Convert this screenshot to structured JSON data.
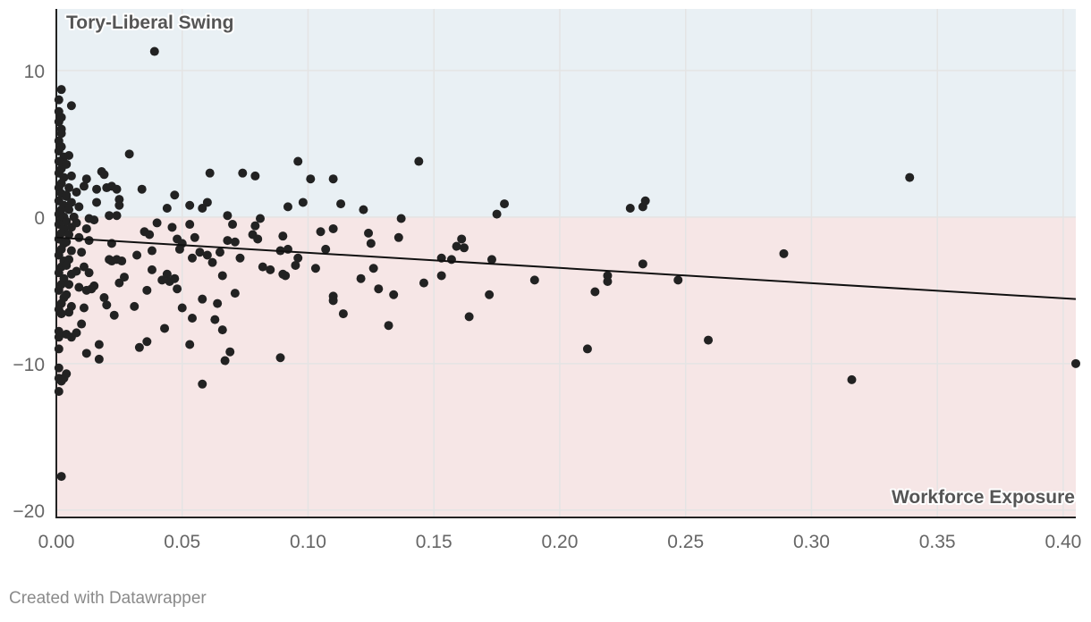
{
  "chart_data": {
    "type": "scatter",
    "ylabel": "Tory-Liberal Swing",
    "xlabel": "Workforce Exposure",
    "xlim": [
      0.0,
      0.405
    ],
    "ylim": [
      -20.5,
      14.2
    ],
    "x_ticks": [
      0.0,
      0.05,
      0.1,
      0.15,
      0.2,
      0.25,
      0.3,
      0.35,
      0.4
    ],
    "x_tick_labels": [
      "0.00",
      "0.05",
      "0.10",
      "0.15",
      "0.20",
      "0.25",
      "0.30",
      "0.35",
      "0.40"
    ],
    "y_ticks": [
      10,
      0,
      -10,
      -20
    ],
    "y_tick_labels": [
      "10",
      "0",
      "−10",
      "−20"
    ],
    "grid": true,
    "regions": [
      {
        "from": 0,
        "to": 14.2,
        "color": "#e9f0f4"
      },
      {
        "from": -20.5,
        "to": 0,
        "color": "#f6e6e6"
      }
    ],
    "trendline": {
      "x": [
        0.0,
        0.405
      ],
      "y": [
        -1.4,
        -5.6
      ]
    },
    "point_color": "#222222",
    "points": [
      [
        0.039,
        11.3
      ],
      [
        0.002,
        8.7
      ],
      [
        0.001,
        8.0
      ],
      [
        0.001,
        7.2
      ],
      [
        0.002,
        6.8
      ],
      [
        0.001,
        6.5
      ],
      [
        0.002,
        6.0
      ],
      [
        0.002,
        5.7
      ],
      [
        0.001,
        5.2
      ],
      [
        0.002,
        4.8
      ],
      [
        0.001,
        4.5
      ],
      [
        0.003,
        4.1
      ],
      [
        0.001,
        3.8
      ],
      [
        0.002,
        3.3
      ],
      [
        0.001,
        3.0
      ],
      [
        0.003,
        2.7
      ],
      [
        0.002,
        2.3
      ],
      [
        0.001,
        2.0
      ],
      [
        0.002,
        1.6
      ],
      [
        0.004,
        1.4
      ],
      [
        0.001,
        1.1
      ],
      [
        0.003,
        0.8
      ],
      [
        0.002,
        0.5
      ],
      [
        0.001,
        0.2
      ],
      [
        0.003,
        0.0
      ],
      [
        0.002,
        -0.2
      ],
      [
        0.001,
        -0.5
      ],
      [
        0.003,
        -0.8
      ],
      [
        0.002,
        -1.1
      ],
      [
        0.001,
        -1.5
      ],
      [
        0.003,
        -1.8
      ],
      [
        0.002,
        -2.2
      ],
      [
        0.001,
        -2.6
      ],
      [
        0.003,
        -3.0
      ],
      [
        0.002,
        -3.4
      ],
      [
        0.001,
        -3.8
      ],
      [
        0.003,
        -4.2
      ],
      [
        0.002,
        -4.6
      ],
      [
        0.001,
        -5.0
      ],
      [
        0.003,
        -5.5
      ],
      [
        0.002,
        -5.9
      ],
      [
        0.001,
        -6.3
      ],
      [
        0.002,
        -6.6
      ],
      [
        0.001,
        -7.8
      ],
      [
        0.001,
        -8.2
      ],
      [
        0.001,
        -9.0
      ],
      [
        0.001,
        -10.3
      ],
      [
        0.001,
        -11.0
      ],
      [
        0.002,
        -11.2
      ],
      [
        0.001,
        -11.9
      ],
      [
        0.002,
        -17.7
      ],
      [
        0.006,
        7.6
      ],
      [
        0.005,
        4.2
      ],
      [
        0.004,
        3.6
      ],
      [
        0.006,
        2.8
      ],
      [
        0.005,
        2.0
      ],
      [
        0.004,
        1.5
      ],
      [
        0.006,
        1.0
      ],
      [
        0.005,
        0.5
      ],
      [
        0.007,
        0.0
      ],
      [
        0.004,
        -0.3
      ],
      [
        0.006,
        -0.7
      ],
      [
        0.005,
        -1.2
      ],
      [
        0.004,
        -1.7
      ],
      [
        0.006,
        -2.3
      ],
      [
        0.005,
        -2.9
      ],
      [
        0.004,
        -3.3
      ],
      [
        0.006,
        -3.9
      ],
      [
        0.005,
        -4.6
      ],
      [
        0.004,
        -5.3
      ],
      [
        0.006,
        -6.1
      ],
      [
        0.005,
        -6.5
      ],
      [
        0.004,
        -8.0
      ],
      [
        0.006,
        -8.2
      ],
      [
        0.004,
        -10.7
      ],
      [
        0.003,
        -11.0
      ],
      [
        0.008,
        1.7
      ],
      [
        0.009,
        0.7
      ],
      [
        0.008,
        -0.4
      ],
      [
        0.009,
        -1.4
      ],
      [
        0.01,
        -2.4
      ],
      [
        0.008,
        -3.7
      ],
      [
        0.009,
        -4.8
      ],
      [
        0.011,
        -6.2
      ],
      [
        0.01,
        -7.3
      ],
      [
        0.008,
        -7.9
      ],
      [
        0.011,
        2.1
      ],
      [
        0.012,
        2.6
      ],
      [
        0.013,
        -0.1
      ],
      [
        0.012,
        -0.8
      ],
      [
        0.013,
        -1.6
      ],
      [
        0.011,
        -3.4
      ],
      [
        0.013,
        -3.8
      ],
      [
        0.012,
        -5.0
      ],
      [
        0.014,
        -4.9
      ],
      [
        0.012,
        -9.3
      ],
      [
        0.015,
        -4.7
      ],
      [
        0.015,
        -0.2
      ],
      [
        0.016,
        1.0
      ],
      [
        0.016,
        1.9
      ],
      [
        0.018,
        3.1
      ],
      [
        0.019,
        2.9
      ],
      [
        0.02,
        2.0
      ],
      [
        0.022,
        2.1
      ],
      [
        0.024,
        1.9
      ],
      [
        0.025,
        1.2
      ],
      [
        0.025,
        0.8
      ],
      [
        0.021,
        0.1
      ],
      [
        0.024,
        0.1
      ],
      [
        0.017,
        -8.7
      ],
      [
        0.017,
        -9.7
      ],
      [
        0.019,
        -5.5
      ],
      [
        0.02,
        -6.0
      ],
      [
        0.021,
        -2.9
      ],
      [
        0.022,
        -3.0
      ],
      [
        0.022,
        -1.8
      ],
      [
        0.023,
        -6.7
      ],
      [
        0.024,
        -2.9
      ],
      [
        0.025,
        -4.5
      ],
      [
        0.026,
        -3.0
      ],
      [
        0.027,
        -4.1
      ],
      [
        0.029,
        4.3
      ],
      [
        0.031,
        -6.1
      ],
      [
        0.032,
        -2.6
      ],
      [
        0.033,
        -8.9
      ],
      [
        0.034,
        1.9
      ],
      [
        0.035,
        -1.0
      ],
      [
        0.036,
        -5.0
      ],
      [
        0.036,
        -8.5
      ],
      [
        0.037,
        -1.2
      ],
      [
        0.038,
        -3.6
      ],
      [
        0.038,
        -2.3
      ],
      [
        0.04,
        -0.4
      ],
      [
        0.042,
        -4.3
      ],
      [
        0.043,
        -7.6
      ],
      [
        0.044,
        0.6
      ],
      [
        0.044,
        -3.9
      ],
      [
        0.045,
        -4.4
      ],
      [
        0.046,
        -0.7
      ],
      [
        0.047,
        -4.2
      ],
      [
        0.047,
        1.5
      ],
      [
        0.048,
        -1.5
      ],
      [
        0.048,
        -4.9
      ],
      [
        0.049,
        -2.2
      ],
      [
        0.05,
        -6.2
      ],
      [
        0.05,
        -1.8
      ],
      [
        0.053,
        -0.5
      ],
      [
        0.053,
        0.8
      ],
      [
        0.053,
        -8.7
      ],
      [
        0.054,
        -2.8
      ],
      [
        0.054,
        -6.9
      ],
      [
        0.055,
        -1.4
      ],
      [
        0.057,
        -2.4
      ],
      [
        0.058,
        0.6
      ],
      [
        0.058,
        -5.6
      ],
      [
        0.058,
        -11.4
      ],
      [
        0.06,
        -2.6
      ],
      [
        0.06,
        1.0
      ],
      [
        0.061,
        3.0
      ],
      [
        0.062,
        -3.1
      ],
      [
        0.063,
        -7.0
      ],
      [
        0.064,
        -5.9
      ],
      [
        0.065,
        -2.4
      ],
      [
        0.066,
        -4.0
      ],
      [
        0.066,
        -7.7
      ],
      [
        0.067,
        -9.8
      ],
      [
        0.068,
        0.1
      ],
      [
        0.068,
        -1.6
      ],
      [
        0.069,
        -9.2
      ],
      [
        0.07,
        -0.5
      ],
      [
        0.071,
        -1.7
      ],
      [
        0.071,
        -5.2
      ],
      [
        0.073,
        -2.8
      ],
      [
        0.074,
        3.0
      ],
      [
        0.078,
        -1.2
      ],
      [
        0.079,
        2.8
      ],
      [
        0.079,
        -0.6
      ],
      [
        0.08,
        -1.5
      ],
      [
        0.081,
        -0.1
      ],
      [
        0.082,
        -3.4
      ],
      [
        0.085,
        -3.6
      ],
      [
        0.089,
        -9.6
      ],
      [
        0.089,
        -2.3
      ],
      [
        0.09,
        -3.9
      ],
      [
        0.09,
        -1.3
      ],
      [
        0.091,
        -4.0
      ],
      [
        0.092,
        -2.2
      ],
      [
        0.092,
        0.7
      ],
      [
        0.095,
        -3.3
      ],
      [
        0.096,
        -2.8
      ],
      [
        0.096,
        3.8
      ],
      [
        0.098,
        1.0
      ],
      [
        0.101,
        2.6
      ],
      [
        0.103,
        -3.5
      ],
      [
        0.105,
        -1.0
      ],
      [
        0.107,
        -2.2
      ],
      [
        0.11,
        2.6
      ],
      [
        0.11,
        -0.8
      ],
      [
        0.11,
        -5.4
      ],
      [
        0.11,
        -5.7
      ],
      [
        0.113,
        0.9
      ],
      [
        0.114,
        -6.6
      ],
      [
        0.121,
        -4.2
      ],
      [
        0.122,
        0.5
      ],
      [
        0.124,
        -1.1
      ],
      [
        0.125,
        -1.8
      ],
      [
        0.126,
        -3.5
      ],
      [
        0.128,
        -4.9
      ],
      [
        0.132,
        -7.4
      ],
      [
        0.134,
        -5.3
      ],
      [
        0.136,
        -1.4
      ],
      [
        0.137,
        -0.1
      ],
      [
        0.144,
        3.8
      ],
      [
        0.146,
        -4.5
      ],
      [
        0.153,
        -4.0
      ],
      [
        0.153,
        -2.8
      ],
      [
        0.157,
        -2.9
      ],
      [
        0.159,
        -2.0
      ],
      [
        0.161,
        -1.5
      ],
      [
        0.162,
        -2.1
      ],
      [
        0.164,
        -6.8
      ],
      [
        0.172,
        -5.3
      ],
      [
        0.173,
        -2.9
      ],
      [
        0.175,
        0.2
      ],
      [
        0.178,
        0.9
      ],
      [
        0.19,
        -4.3
      ],
      [
        0.211,
        -9.0
      ],
      [
        0.214,
        -5.1
      ],
      [
        0.219,
        -4.0
      ],
      [
        0.219,
        -4.4
      ],
      [
        0.228,
        0.6
      ],
      [
        0.233,
        0.7
      ],
      [
        0.233,
        -3.2
      ],
      [
        0.234,
        1.1
      ],
      [
        0.247,
        -4.3
      ],
      [
        0.259,
        -8.4
      ],
      [
        0.289,
        -2.5
      ],
      [
        0.316,
        -11.1
      ],
      [
        0.339,
        2.7
      ],
      [
        0.405,
        -10.0
      ]
    ]
  },
  "footer": {
    "credit": "Created with Datawrapper"
  }
}
